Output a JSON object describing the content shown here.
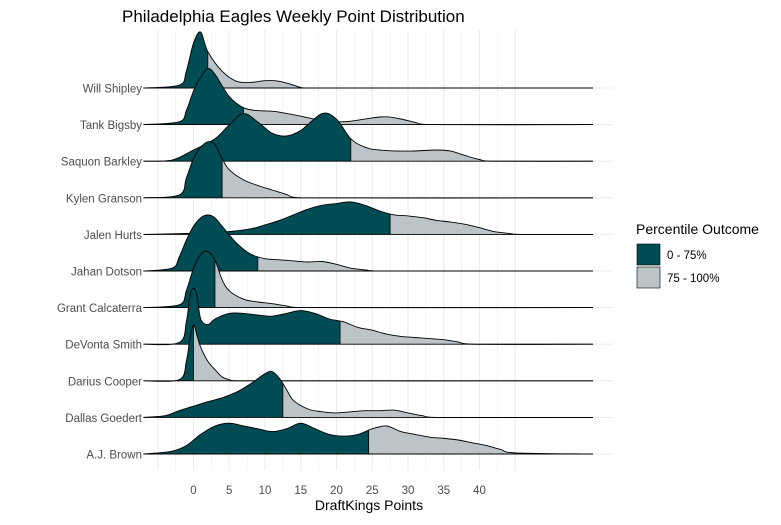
{
  "chart_data": {
    "type": "ridgeline",
    "title": "Philadelphia Eagles Weekly Point Distribution",
    "xlabel": "DraftKings Points",
    "ylabel": "",
    "xlim": [
      -7,
      58
    ],
    "xticks": [
      0,
      5,
      10,
      15,
      20,
      25,
      30,
      35,
      40
    ],
    "grid": true,
    "legend": {
      "title": "Percentile Outcome",
      "position": "right",
      "entries": [
        {
          "label": "0 - 75%",
          "color": "#004c54"
        },
        {
          "label": "75 - 100%",
          "color": "#bcc4c8"
        }
      ]
    },
    "colors": {
      "low": "#004c54",
      "high": "#bcc4c8",
      "outline": "#000000",
      "grid": "#ebebeb"
    },
    "series": [
      {
        "name": "Will Shipley",
        "x": [
          -7,
          -2,
          -1,
          0,
          1,
          2,
          4,
          6,
          8,
          10,
          12,
          14,
          15,
          16,
          58
        ],
        "y": [
          0,
          0.05,
          0.3,
          0.8,
          1.0,
          0.65,
          0.3,
          0.12,
          0.1,
          0.13,
          0.12,
          0.05,
          0.01,
          0,
          0
        ],
        "p75": 2
      },
      {
        "name": "Tank Bigsby",
        "x": [
          -7,
          -2,
          -1,
          0,
          1,
          2,
          3,
          5,
          7,
          9,
          11,
          13,
          15,
          18,
          20,
          22,
          25,
          27,
          29,
          31,
          33,
          58
        ],
        "y": [
          0,
          0.05,
          0.25,
          0.6,
          0.85,
          1.0,
          0.9,
          0.5,
          0.3,
          0.25,
          0.24,
          0.2,
          0.15,
          0.07,
          0.05,
          0.06,
          0.12,
          0.14,
          0.1,
          0.04,
          0,
          0
        ],
        "p75": 7
      },
      {
        "name": "Saquon Barkley",
        "x": [
          -7,
          -3,
          0,
          3,
          5,
          7,
          9,
          11,
          13,
          15,
          18,
          20,
          22,
          24,
          26,
          30,
          34,
          36,
          38,
          40,
          42,
          58
        ],
        "y": [
          0,
          0.02,
          0.2,
          0.4,
          0.65,
          0.85,
          0.7,
          0.5,
          0.45,
          0.55,
          0.85,
          0.75,
          0.4,
          0.25,
          0.2,
          0.18,
          0.2,
          0.18,
          0.1,
          0.03,
          0,
          0
        ],
        "p75": 22
      },
      {
        "name": "Kylen Granson",
        "x": [
          -7,
          -2,
          -1,
          0,
          1,
          2,
          3,
          4,
          5,
          7,
          9,
          11,
          13,
          15,
          58
        ],
        "y": [
          0,
          0.05,
          0.35,
          0.7,
          0.9,
          1.0,
          0.95,
          0.7,
          0.5,
          0.32,
          0.22,
          0.14,
          0.06,
          0,
          0
        ],
        "p75": 4
      },
      {
        "name": "Jalen Hurts",
        "x": [
          -7,
          0,
          5,
          8,
          10,
          12,
          14,
          16,
          18,
          20,
          22,
          24,
          26,
          28,
          30,
          32,
          34,
          36,
          38,
          40,
          42,
          44,
          46,
          58
        ],
        "y": [
          0,
          0.02,
          0.05,
          0.1,
          0.17,
          0.25,
          0.35,
          0.45,
          0.52,
          0.55,
          0.58,
          0.52,
          0.42,
          0.35,
          0.33,
          0.3,
          0.25,
          0.22,
          0.18,
          0.12,
          0.05,
          0.02,
          0,
          0
        ],
        "p75": 27.5
      },
      {
        "name": "Jahan Dotson",
        "x": [
          -7,
          -3,
          -2,
          -1,
          0,
          1,
          2,
          3,
          4,
          6,
          8,
          10,
          12,
          14,
          16,
          18,
          20,
          22,
          24,
          26,
          58
        ],
        "y": [
          0,
          0.05,
          0.25,
          0.55,
          0.8,
          0.95,
          1.0,
          0.95,
          0.8,
          0.5,
          0.3,
          0.22,
          0.2,
          0.18,
          0.16,
          0.17,
          0.12,
          0.05,
          0.02,
          0,
          0
        ],
        "p75": 9
      },
      {
        "name": "Grant Calcaterra",
        "x": [
          -7,
          -2,
          -1,
          0,
          1,
          2,
          3,
          4,
          5,
          7,
          9,
          11,
          13,
          15,
          58
        ],
        "y": [
          0,
          0.05,
          0.3,
          0.7,
          0.95,
          1.0,
          0.85,
          0.5,
          0.3,
          0.15,
          0.1,
          0.07,
          0.03,
          0,
          0
        ],
        "p75": 3
      },
      {
        "name": "DeVonta Smith",
        "x": [
          -7,
          -2,
          -1,
          -0.5,
          0,
          0.5,
          1,
          2,
          3,
          5,
          7,
          9,
          11,
          13,
          15,
          17,
          19,
          21,
          23,
          25,
          27,
          29,
          31,
          33,
          35,
          37,
          39,
          58
        ],
        "y": [
          0,
          0.03,
          0.4,
          0.85,
          1.0,
          0.85,
          0.45,
          0.35,
          0.45,
          0.55,
          0.55,
          0.52,
          0.5,
          0.55,
          0.6,
          0.55,
          0.45,
          0.4,
          0.3,
          0.25,
          0.18,
          0.14,
          0.12,
          0.1,
          0.08,
          0.04,
          0,
          0
        ],
        "p75": 20.5
      },
      {
        "name": "Darius Cooper",
        "x": [
          -7,
          -2,
          -1,
          -0.5,
          0,
          0.5,
          1,
          2,
          3,
          4,
          5,
          6,
          58
        ],
        "y": [
          0,
          0.02,
          0.35,
          0.75,
          1.0,
          0.8,
          0.6,
          0.35,
          0.2,
          0.07,
          0.02,
          0,
          0
        ],
        "p75": 0
      },
      {
        "name": "Dallas Goedert",
        "x": [
          -7,
          -4,
          -2,
          0,
          2,
          4,
          6,
          8,
          10,
          11,
          12,
          13,
          14,
          16,
          18,
          20,
          22,
          24,
          26,
          28,
          30,
          32,
          34,
          58
        ],
        "y": [
          0,
          0.03,
          0.12,
          0.2,
          0.28,
          0.35,
          0.45,
          0.6,
          0.78,
          0.82,
          0.7,
          0.5,
          0.3,
          0.15,
          0.1,
          0.08,
          0.1,
          0.12,
          0.12,
          0.13,
          0.08,
          0.03,
          0,
          0
        ],
        "p75": 12.5
      },
      {
        "name": "A.J. Brown",
        "x": [
          -7,
          -5,
          -3,
          -1,
          1,
          3,
          5,
          7,
          9,
          11,
          13,
          15,
          17,
          19,
          21,
          23,
          25,
          27,
          29,
          31,
          33,
          35,
          37,
          39,
          41,
          43,
          45,
          58
        ],
        "y": [
          0,
          0.02,
          0.05,
          0.15,
          0.35,
          0.5,
          0.55,
          0.5,
          0.45,
          0.4,
          0.45,
          0.55,
          0.45,
          0.35,
          0.32,
          0.35,
          0.45,
          0.5,
          0.4,
          0.35,
          0.3,
          0.28,
          0.25,
          0.2,
          0.15,
          0.08,
          0.02,
          0
        ],
        "p75": 24.5
      }
    ]
  }
}
